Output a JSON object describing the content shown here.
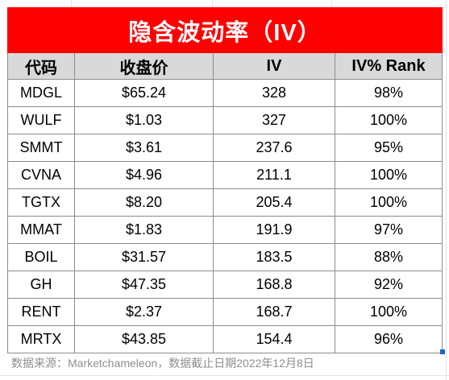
{
  "colors": {
    "title_background": "#FF0000",
    "title_text": "#FFFFFF",
    "header_background": "#D9D9D9",
    "footer_text": "#8E8E8E",
    "selection_handle": "#1F62C4"
  },
  "table": {
    "title": "隐含波动率（IV）",
    "headers": {
      "ticker": "代码",
      "close": "收盘价",
      "iv": "IV",
      "iv_rank": "IV% Rank"
    },
    "rows": [
      {
        "ticker": "MDGL",
        "close": "$65.24",
        "iv": "328",
        "iv_rank": "98%"
      },
      {
        "ticker": "WULF",
        "close": "$1.03",
        "iv": "327",
        "iv_rank": "100%"
      },
      {
        "ticker": "SMMT",
        "close": "$3.61",
        "iv": "237.6",
        "iv_rank": "95%"
      },
      {
        "ticker": "CVNA",
        "close": "$4.96",
        "iv": "211.1",
        "iv_rank": "100%"
      },
      {
        "ticker": "TGTX",
        "close": "$8.20",
        "iv": "205.4",
        "iv_rank": "100%"
      },
      {
        "ticker": "MMAT",
        "close": "$1.83",
        "iv": "191.9",
        "iv_rank": "97%"
      },
      {
        "ticker": "BOIL",
        "close": "$31.57",
        "iv": "183.5",
        "iv_rank": "88%"
      },
      {
        "ticker": "GH",
        "close": "$47.35",
        "iv": "168.8",
        "iv_rank": "92%"
      },
      {
        "ticker": "RENT",
        "close": "$2.37",
        "iv": "168.7",
        "iv_rank": "100%"
      },
      {
        "ticker": "MRTX",
        "close": "$43.85",
        "iv": "154.4",
        "iv_rank": "96%"
      }
    ]
  },
  "footer": {
    "source_note": "数据来源：Marketchameleon，数据截止日期2022年12月8日"
  }
}
